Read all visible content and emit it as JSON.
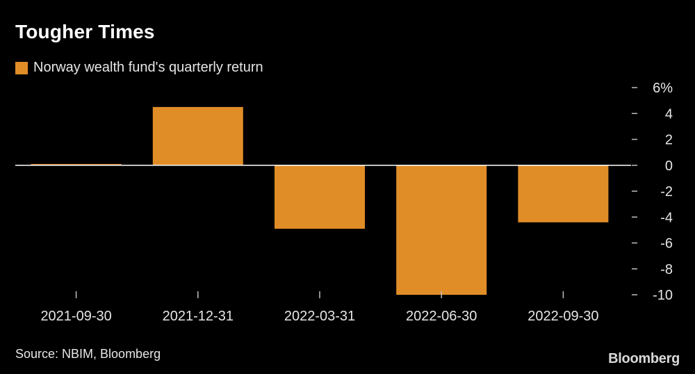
{
  "colors": {
    "background": "#000000",
    "bar": "#e08d28",
    "zero_line": "#ffffff",
    "tick": "#bfbfbf",
    "text": "#e6e6e6"
  },
  "chart_data": {
    "type": "bar",
    "title": "Tougher Times",
    "legend": [
      "Norway wealth fund's quarterly return"
    ],
    "categories": [
      "2021-09-30",
      "2021-12-31",
      "2022-03-31",
      "2022-06-30",
      "2022-09-30"
    ],
    "series": [
      {
        "name": "Norway wealth fund's quarterly return",
        "values": [
          0.1,
          4.5,
          -4.9,
          -10.0,
          -4.4
        ]
      }
    ],
    "y_axis": {
      "position": "right",
      "ylim": [
        -10,
        6
      ],
      "ticks": [
        6,
        4,
        2,
        0,
        -2,
        -4,
        -6,
        -8,
        -10
      ],
      "tick_labels": [
        "6%",
        "4",
        "2",
        "0",
        "-2",
        "-4",
        "-6",
        "-8",
        "-10"
      ]
    },
    "xlabel": "",
    "ylabel": "",
    "grid": false,
    "source": "Source: NBIM, Bloomberg",
    "brand": "Bloomberg"
  }
}
